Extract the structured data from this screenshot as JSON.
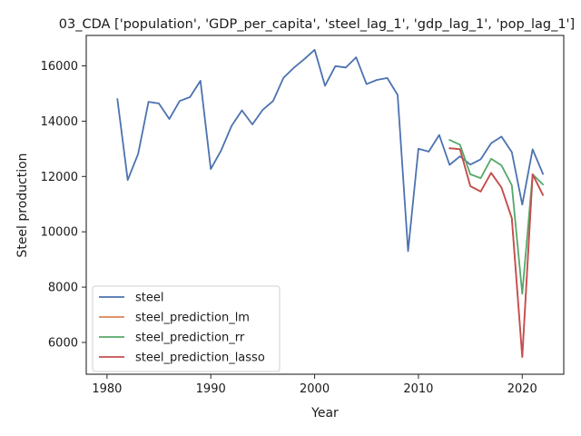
{
  "chart_data": {
    "type": "line",
    "title": "03_CDA ['population', 'GDP_per_capita', 'steel_lag_1', 'gdp_lag_1', 'pop_lag_1']",
    "xlabel": "Year",
    "ylabel": "Steel production",
    "xlim": [
      1978,
      2024
    ],
    "ylim": [
      4850,
      17100
    ],
    "xticks": [
      1980,
      1990,
      2000,
      2010,
      2020
    ],
    "yticks": [
      6000,
      8000,
      10000,
      12000,
      14000,
      16000
    ],
    "grid": false,
    "legend_position": "lower-left",
    "series": [
      {
        "name": "steel",
        "color": "#4c72b0",
        "x": [
          1981,
          1982,
          1983,
          1984,
          1985,
          1986,
          1987,
          1988,
          1989,
          1990,
          1991,
          1992,
          1993,
          1994,
          1995,
          1996,
          1997,
          1998,
          1999,
          2000,
          2001,
          2002,
          2003,
          2004,
          2005,
          2006,
          2007,
          2008,
          2009,
          2010,
          2011,
          2012,
          2013,
          2014,
          2015,
          2016,
          2017,
          2018,
          2019,
          2020,
          2021,
          2022
        ],
        "y": [
          14800,
          11870,
          12820,
          14700,
          14640,
          14080,
          14730,
          14870,
          15460,
          12270,
          12950,
          13830,
          14390,
          13880,
          14410,
          14730,
          15570,
          15930,
          16240,
          16580,
          15280,
          15990,
          15940,
          16310,
          15340,
          15490,
          15560,
          14950,
          9300,
          13000,
          12900,
          13500,
          12420,
          12730,
          12430,
          12620,
          13200,
          13440,
          12880,
          10980,
          12980,
          12090
        ]
      },
      {
        "name": "steel_prediction_lm",
        "color": "#dd8452",
        "x": [
          2013,
          2014,
          2015,
          2016,
          2017,
          2018,
          2019,
          2020,
          2021,
          2022
        ],
        "y": [
          13020,
          12990,
          11650,
          11460,
          12130,
          11600,
          10480,
          5480,
          12080,
          11330
        ]
      },
      {
        "name": "steel_prediction_rr",
        "color": "#55a868",
        "x": [
          2013,
          2014,
          2015,
          2016,
          2017,
          2018,
          2019,
          2020,
          2021,
          2022
        ],
        "y": [
          13320,
          13150,
          12080,
          11940,
          12640,
          12400,
          11680,
          7760,
          12080,
          11710
        ]
      },
      {
        "name": "steel_prediction_lasso",
        "color": "#c44e52",
        "x": [
          2013,
          2014,
          2015,
          2016,
          2017,
          2018,
          2019,
          2020,
          2021,
          2022
        ],
        "y": [
          13020,
          12980,
          11650,
          11450,
          12130,
          11600,
          10500,
          5470,
          12080,
          11330
        ]
      }
    ]
  }
}
